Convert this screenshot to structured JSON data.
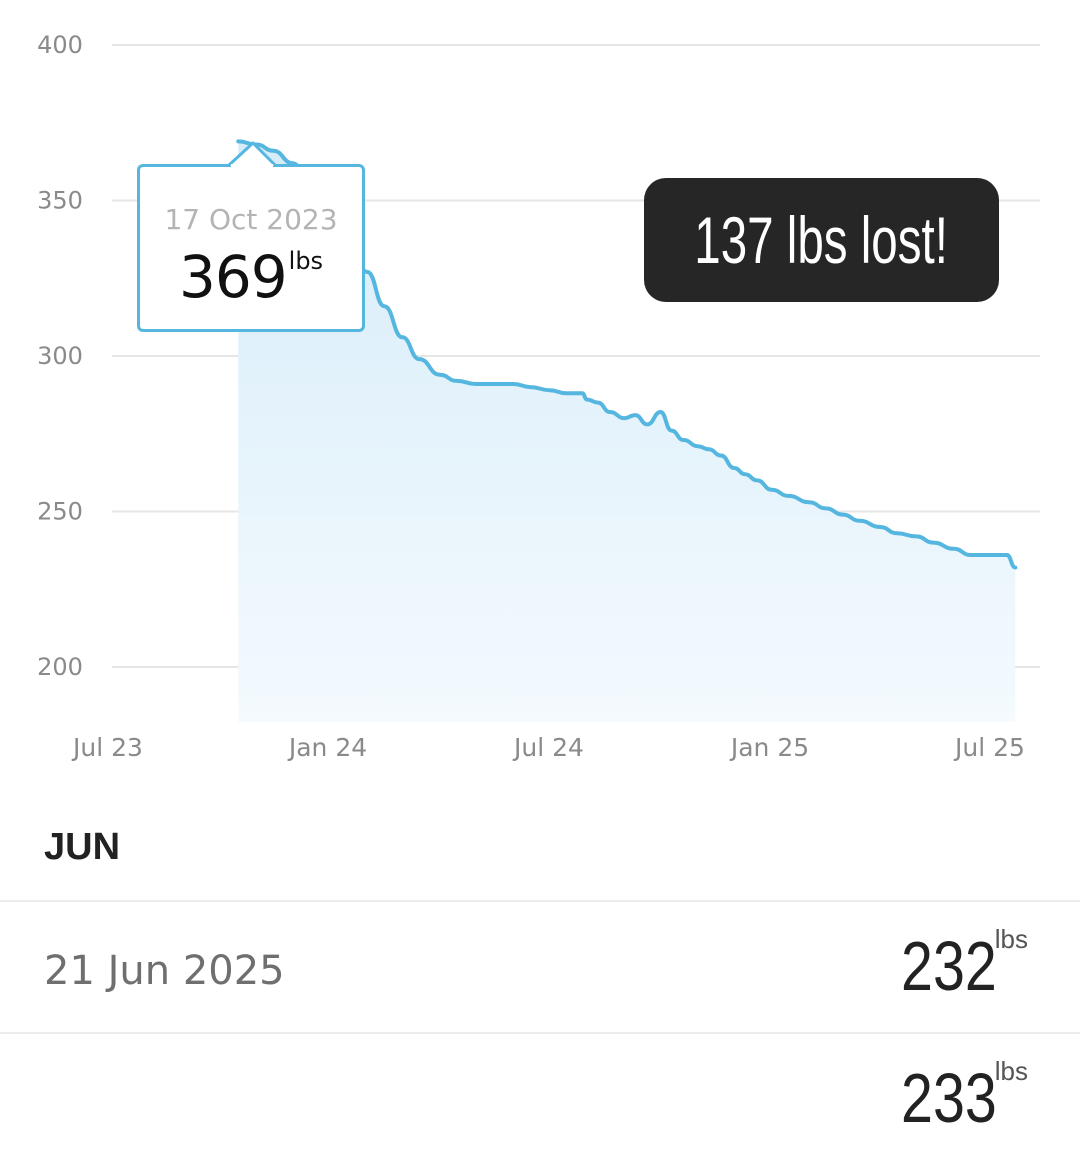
{
  "chart_data": {
    "type": "area",
    "y_ticks": [
      "400",
      "350",
      "300",
      "250",
      "200"
    ],
    "x_ticks": [
      "Jul 23",
      "Jan 24",
      "Jul 24",
      "Jan 25",
      "Jul 25"
    ],
    "ylim": [
      182,
      400
    ],
    "grid": true,
    "series": [
      {
        "x": [
          "2023-10-17",
          "2023-11-01",
          "2023-11-15",
          "2023-12-01",
          "2023-12-15",
          "2024-01-01",
          "2024-01-15",
          "2024-02-01",
          "2024-02-15",
          "2024-03-01",
          "2024-03-15",
          "2024-04-01",
          "2024-04-15",
          "2024-05-01",
          "2024-05-15",
          "2024-06-01",
          "2024-06-15",
          "2024-07-01",
          "2024-07-15",
          "2024-07-28",
          "2024-08-01",
          "2024-08-10",
          "2024-08-20",
          "2024-09-01",
          "2024-09-10",
          "2024-09-20",
          "2024-10-01",
          "2024-10-10",
          "2024-10-20",
          "2024-11-01",
          "2024-11-10",
          "2024-11-20",
          "2024-12-01",
          "2024-12-10",
          "2024-12-20",
          "2025-01-01",
          "2025-01-15",
          "2025-02-01",
          "2025-02-15",
          "2025-03-01",
          "2025-03-15",
          "2025-04-01",
          "2025-04-15",
          "2025-05-01",
          "2025-05-15",
          "2025-06-01",
          "2025-06-15",
          "2025-07-01",
          "2025-07-15",
          "2025-07-22"
        ],
        "values": [
          369,
          368,
          366,
          362,
          356,
          349,
          339,
          327,
          316,
          306,
          299,
          294,
          292,
          291,
          291,
          291,
          290,
          289,
          288,
          288,
          286,
          285,
          282,
          280,
          281,
          278,
          282,
          276,
          273,
          271,
          270,
          268,
          264,
          262,
          260,
          257,
          255,
          253,
          251,
          249,
          247,
          245,
          243,
          242,
          240,
          238,
          236,
          236,
          236,
          232
        ]
      }
    ]
  },
  "tooltip": {
    "date": "17 Oct 2023",
    "value": "369",
    "unit": "lbs"
  },
  "badge": {
    "text": "137 lbs lost!"
  },
  "log": {
    "month": "JUN",
    "entries": [
      {
        "date": "21 Jun 2025",
        "value": "232",
        "unit": "lbs"
      },
      {
        "date": "",
        "value": "233",
        "unit": "lbs"
      }
    ]
  },
  "colors": {
    "line": "#55b6e0",
    "fill_top": "#d6ecf9",
    "fill_bottom": "#f4fafe",
    "grid": "#e6e6e6"
  }
}
